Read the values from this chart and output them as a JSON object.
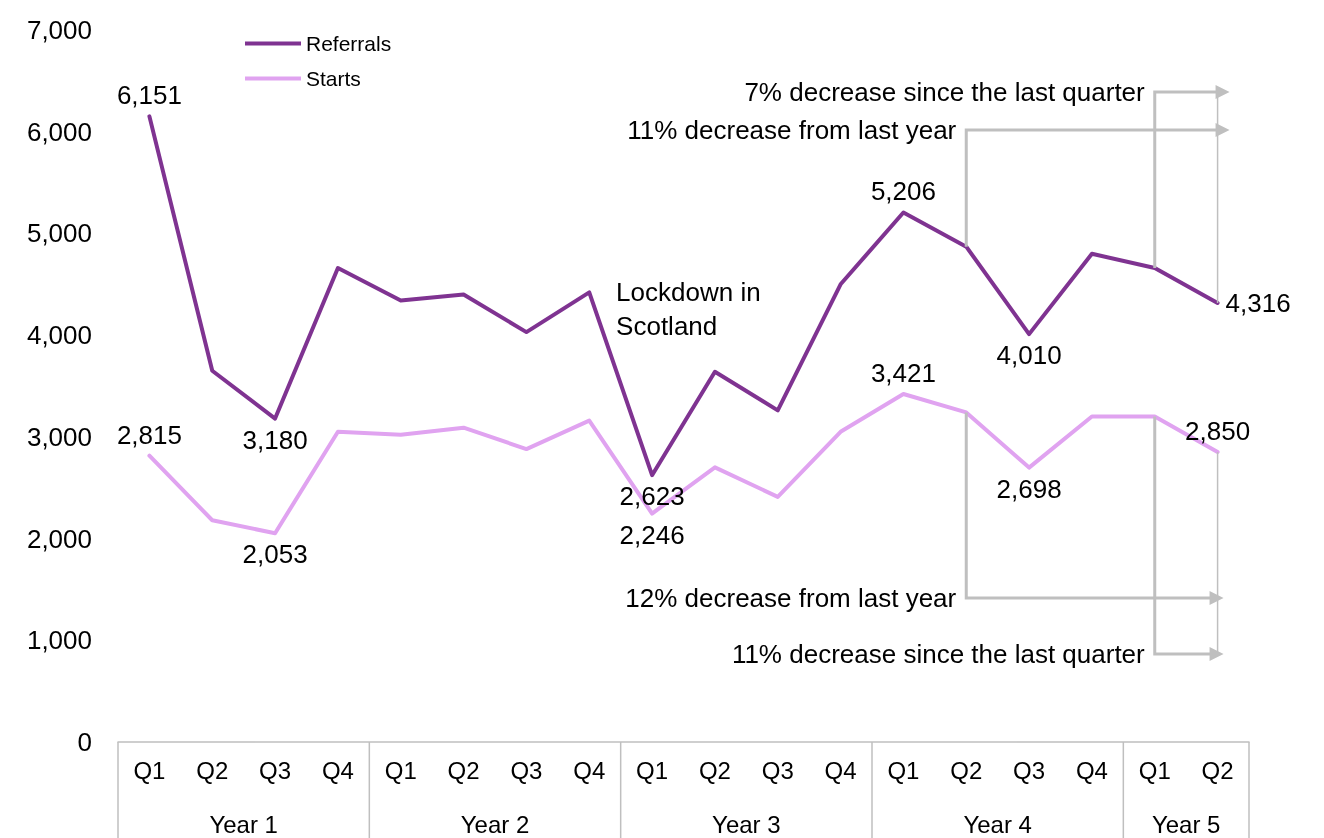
{
  "chart_data": {
    "type": "line",
    "categories": [
      "Q1",
      "Q2",
      "Q3",
      "Q4",
      "Q1",
      "Q2",
      "Q3",
      "Q4",
      "Q1",
      "Q2",
      "Q3",
      "Q4",
      "Q1",
      "Q2",
      "Q3",
      "Q4",
      "Q1",
      "Q2"
    ],
    "series": [
      {
        "name": "Referrals",
        "color": "#7f3391",
        "values": [
          6151,
          3650,
          3180,
          4660,
          4340,
          4400,
          4030,
          4420,
          2623,
          3640,
          3260,
          4500,
          5206,
          4870,
          4010,
          4800,
          4660,
          4316
        ],
        "value_labels": [
          "6,151",
          null,
          "3,180",
          null,
          null,
          null,
          null,
          null,
          "2,623",
          null,
          null,
          null,
          "5,206",
          null,
          "4,010",
          null,
          null,
          "4,316"
        ]
      },
      {
        "name": "Starts",
        "color": "#e0a3f0",
        "values": [
          2815,
          2180,
          2053,
          3050,
          3020,
          3090,
          2880,
          3160,
          2246,
          2700,
          2410,
          3050,
          3421,
          3240,
          2698,
          3200,
          3200,
          2850
        ],
        "value_labels": [
          "2,815",
          null,
          "2,053",
          null,
          null,
          null,
          null,
          null,
          "2,246",
          null,
          null,
          null,
          "3,421",
          null,
          "2,698",
          null,
          null,
          "2,850"
        ]
      }
    ],
    "ylim": [
      0,
      7000
    ],
    "yticks": [
      {
        "value": 0,
        "label": "0"
      },
      {
        "value": 1000,
        "label": "1,000"
      },
      {
        "value": 2000,
        "label": "2,000"
      },
      {
        "value": 3000,
        "label": "3,000"
      },
      {
        "value": 4000,
        "label": "4,000"
      },
      {
        "value": 5000,
        "label": "5,000"
      },
      {
        "value": 6000,
        "label": "6,000"
      },
      {
        "value": 7000,
        "label": "7,000"
      }
    ],
    "annotations": [
      "Lockdown in Scotland",
      "7% decrease since the last quarter",
      "11% decrease from last year",
      "12% decrease from last year",
      "11% decrease since the last quarter",
      "Year 1",
      "Year 2",
      "Year 3",
      "Year 4",
      "Year 5"
    ],
    "grid": false,
    "legend": "top left",
    "marker": "none",
    "line_style": "solid"
  }
}
